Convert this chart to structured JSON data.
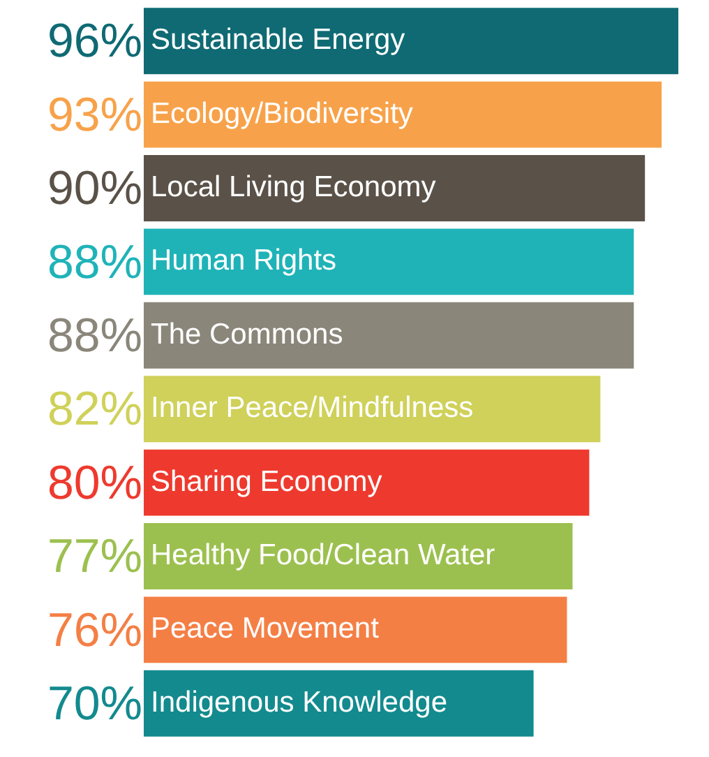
{
  "chart_data": {
    "type": "bar",
    "orientation": "horizontal",
    "categories": [
      "Sustainable Energy",
      "Ecology/Biodiversity",
      "Local Living Economy",
      "Human Rights",
      "The Commons",
      "Inner Peace/Mindfulness",
      "Sharing Economy",
      "Healthy Food/Clean Water",
      "Peace Movement",
      "Indigenous Knowledge"
    ],
    "values": [
      96,
      93,
      90,
      88,
      88,
      82,
      80,
      77,
      76,
      70
    ],
    "value_labels": [
      "96%",
      "93%",
      "90%",
      "88%",
      "88%",
      "82%",
      "80%",
      "77%",
      "76%",
      "70%"
    ],
    "colors": [
      "#0f6a73",
      "#f7a24a",
      "#5a5248",
      "#1fb3b8",
      "#8a867a",
      "#cfd15a",
      "#ee3a2e",
      "#9cc04f",
      "#f47f45",
      "#138a8e"
    ],
    "legend": false
  }
}
